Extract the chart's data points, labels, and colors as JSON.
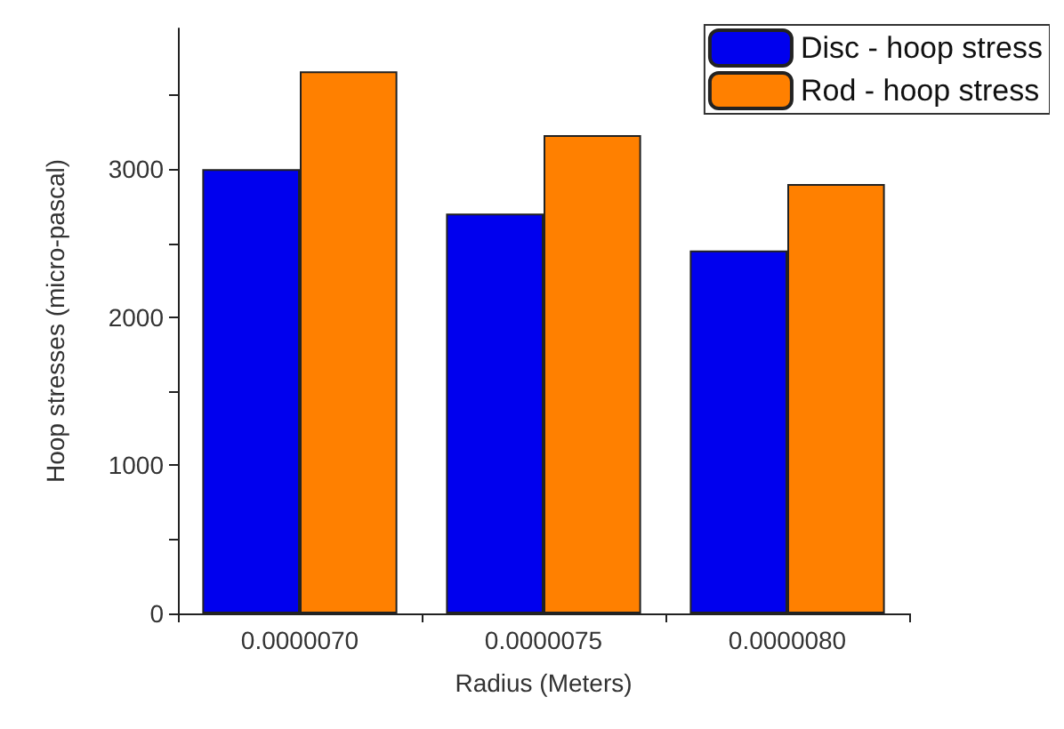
{
  "chart_data": {
    "type": "bar",
    "xlabel": "Radius (Meters)",
    "ylabel": "Hoop stresses (micro-pascal)",
    "categories": [
      "0.0000070",
      "0.0000075",
      "0.0000080"
    ],
    "series": [
      {
        "name": "Disc - hoop stress",
        "color": "#0000ee",
        "values": [
          3000,
          2700,
          2450
        ]
      },
      {
        "name": "Rod - hoop stress",
        "color": "#ff8000",
        "values": [
          3660,
          3230,
          2900
        ]
      }
    ],
    "ylim": [
      0,
      3950
    ],
    "yticks": [
      0,
      {
        "value": 500,
        "label": null
      },
      1000,
      {
        "value": 1500,
        "label": null
      },
      2000,
      {
        "value": 2500,
        "label": null
      },
      3000,
      {
        "value": 3500,
        "label": null
      }
    ],
    "grid": false,
    "legend": "top right"
  }
}
